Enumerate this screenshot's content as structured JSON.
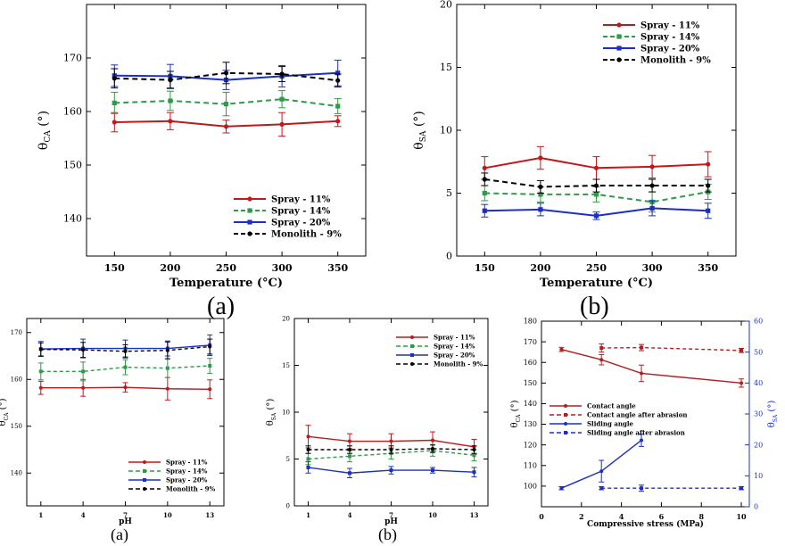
{
  "figure_captions": {
    "top_left": "(a)",
    "top_right": "(b)",
    "bottom_left": "(a)",
    "bottom_middle": "(b)"
  },
  "series_colors": {
    "spray_11": "#c0181b",
    "spray_14": "#2e9b48",
    "spray_20": "#1b2fc4",
    "monolith_9": "#000000",
    "abrasion_red": "#b02020",
    "abrasion_blue": "#1b2fc4"
  },
  "chart_data": [
    {
      "id": "top_left",
      "type": "line",
      "title": "",
      "xlabel": "Temperature (°C)",
      "ylabel": "θCA (°)",
      "ylabel_main": "θ",
      "ylabel_sub": "CA",
      "ylabel_tail": " (°)",
      "xlim": [
        125,
        375
      ],
      "ylim": [
        133,
        180
      ],
      "x": [
        150,
        200,
        250,
        300,
        350
      ],
      "xticks": [
        "150",
        "200",
        "250",
        "300",
        "350"
      ],
      "yticks": [
        140,
        150,
        160,
        170
      ],
      "ytick_labels": [
        "140",
        "150",
        "160",
        "170"
      ],
      "legend_position": "bottom-right",
      "series": [
        {
          "name": "Spray - 11%",
          "color_key": "spray_11",
          "dash": "solid",
          "marker": "circle",
          "values": [
            158.0,
            158.2,
            157.2,
            157.6,
            158.2
          ],
          "errors": [
            1.8,
            1.6,
            1.2,
            2.2,
            1.0
          ]
        },
        {
          "name": "Spray - 14%",
          "color_key": "spray_14",
          "dash": "dashed",
          "marker": "square",
          "values": [
            161.6,
            162.0,
            161.4,
            162.3,
            161.0
          ],
          "errors": [
            2.0,
            1.8,
            2.2,
            1.6,
            1.4
          ]
        },
        {
          "name": "Spray - 20%",
          "color_key": "spray_20",
          "dash": "solid",
          "marker": "square",
          "values": [
            166.7,
            166.6,
            165.9,
            166.6,
            167.2
          ],
          "errors": [
            2.0,
            2.2,
            1.8,
            2.0,
            2.4
          ]
        },
        {
          "name": "Monolith - 9%",
          "color_key": "monolith_9",
          "dash": "dashed",
          "marker": "circle",
          "values": [
            166.2,
            165.9,
            167.2,
            167.0,
            165.8
          ],
          "errors": [
            1.8,
            1.6,
            2.0,
            1.4,
            1.2
          ]
        }
      ]
    },
    {
      "id": "top_right",
      "type": "line",
      "title": "",
      "xlabel": "Temperature (°C)",
      "ylabel": "θSA (°)",
      "ylabel_main": "θ",
      "ylabel_sub": "SA",
      "ylabel_tail": " (°)",
      "xlim": [
        125,
        375
      ],
      "ylim": [
        0,
        20
      ],
      "x": [
        150,
        200,
        250,
        300,
        350
      ],
      "xticks": [
        "150",
        "200",
        "250",
        "300",
        "350"
      ],
      "yticks": [
        0,
        5,
        10,
        15,
        20
      ],
      "ytick_labels": [
        "0",
        "5",
        "10",
        "15",
        "20"
      ],
      "legend_position": "top-right",
      "series": [
        {
          "name": "Spray - 11%",
          "color_key": "spray_11",
          "dash": "solid",
          "marker": "circle",
          "values": [
            7.0,
            7.8,
            7.0,
            7.1,
            7.3
          ],
          "errors": [
            0.9,
            0.9,
            0.9,
            0.9,
            1.0
          ]
        },
        {
          "name": "Spray - 14%",
          "color_key": "spray_14",
          "dash": "dashed",
          "marker": "square",
          "values": [
            5.0,
            4.9,
            4.9,
            4.3,
            5.1
          ],
          "errors": [
            0.6,
            0.6,
            0.6,
            0.8,
            0.6
          ]
        },
        {
          "name": "Spray - 20%",
          "color_key": "spray_20",
          "dash": "solid",
          "marker": "square",
          "values": [
            3.6,
            3.7,
            3.2,
            3.8,
            3.6
          ],
          "errors": [
            0.5,
            0.5,
            0.3,
            0.6,
            0.6
          ]
        },
        {
          "name": "Monolith - 9%",
          "color_key": "monolith_9",
          "dash": "dashed",
          "marker": "circle",
          "values": [
            6.1,
            5.5,
            5.6,
            5.6,
            5.6
          ],
          "errors": [
            0.5,
            0.5,
            0.5,
            0.5,
            0.5
          ]
        }
      ]
    },
    {
      "id": "bottom_left",
      "type": "line",
      "title": "",
      "xlabel": "pH",
      "ylabel": "θCA (°)",
      "ylabel_main": "θ",
      "ylabel_sub": "CA",
      "ylabel_tail": " (°)",
      "xlim": [
        0,
        14
      ],
      "ylim": [
        133,
        173
      ],
      "x": [
        1,
        4,
        7,
        10,
        13
      ],
      "xticks": [
        "1",
        "4",
        "7",
        "10",
        "13"
      ],
      "yticks": [
        140,
        150,
        160,
        170
      ],
      "ytick_labels": [
        "140",
        "150",
        "160",
        "170"
      ],
      "legend_position": "bottom-right",
      "series": [
        {
          "name": "Spray - 11%",
          "color_key": "spray_11",
          "dash": "solid",
          "marker": "circle",
          "values": [
            158.2,
            158.2,
            158.3,
            158.0,
            157.9
          ],
          "errors": [
            1.4,
            1.8,
            1.0,
            2.4,
            2.0
          ]
        },
        {
          "name": "Spray - 14%",
          "color_key": "spray_14",
          "dash": "dashed",
          "marker": "square",
          "values": [
            161.7,
            161.7,
            162.6,
            162.4,
            162.9
          ],
          "errors": [
            1.8,
            2.0,
            1.6,
            2.0,
            1.6
          ]
        },
        {
          "name": "Spray - 20%",
          "color_key": "spray_20",
          "dash": "solid",
          "marker": "square",
          "values": [
            166.5,
            166.6,
            166.6,
            166.6,
            167.3
          ],
          "errors": [
            1.6,
            2.0,
            1.8,
            1.6,
            2.2
          ]
        },
        {
          "name": "Monolith - 9%",
          "color_key": "monolith_9",
          "dash": "dashed",
          "marker": "circle",
          "values": [
            166.4,
            166.3,
            166.0,
            166.2,
            167.0
          ],
          "errors": [
            1.4,
            1.6,
            1.4,
            1.8,
            1.6
          ]
        }
      ]
    },
    {
      "id": "bottom_middle",
      "type": "line",
      "title": "",
      "xlabel": "pH",
      "ylabel": "θSA (°)",
      "ylabel_main": "θ",
      "ylabel_sub": "SA",
      "ylabel_tail": " (°)",
      "xlim": [
        0,
        14
      ],
      "ylim": [
        0,
        20
      ],
      "x": [
        1,
        4,
        7,
        10,
        13
      ],
      "xticks": [
        "1",
        "4",
        "7",
        "10",
        "13"
      ],
      "yticks": [
        0,
        5,
        10,
        15,
        20
      ],
      "ytick_labels": [
        "0",
        "5",
        "10",
        "15",
        "20"
      ],
      "legend_position": "top-right",
      "series": [
        {
          "name": "Spray - 11%",
          "color_key": "spray_11",
          "dash": "solid",
          "marker": "circle",
          "values": [
            7.4,
            6.9,
            6.9,
            7.0,
            6.3
          ],
          "errors": [
            1.2,
            0.8,
            0.8,
            0.9,
            0.8
          ]
        },
        {
          "name": "Spray - 14%",
          "color_key": "spray_14",
          "dash": "dashed",
          "marker": "square",
          "values": [
            5.0,
            5.3,
            5.6,
            5.9,
            5.4
          ],
          "errors": [
            0.6,
            0.6,
            0.6,
            0.6,
            0.6
          ]
        },
        {
          "name": "Spray - 20%",
          "color_key": "spray_20",
          "dash": "solid",
          "marker": "square",
          "values": [
            4.1,
            3.5,
            3.8,
            3.8,
            3.6
          ],
          "errors": [
            0.6,
            0.5,
            0.4,
            0.3,
            0.5
          ]
        },
        {
          "name": "Monolith - 9%",
          "color_key": "monolith_9",
          "dash": "dashed",
          "marker": "circle",
          "values": [
            6.0,
            6.0,
            6.0,
            6.1,
            6.0
          ],
          "errors": [
            0.4,
            0.4,
            0.4,
            0.4,
            0.4
          ]
        }
      ]
    },
    {
      "id": "bottom_right",
      "type": "line",
      "title": "",
      "xlabel": "Compressive stress (MPa)",
      "ylabel": "θCA (°)",
      "ylabel_main": "θ",
      "ylabel_sub": "CA",
      "ylabel_tail": " (°)",
      "y2label": "θSA (°)",
      "y2label_main": "θ",
      "y2label_sub": "SA",
      "y2label_tail": " (°)",
      "xlim": [
        0,
        10.4
      ],
      "ylim": [
        90,
        180
      ],
      "y2lim": [
        0,
        60
      ],
      "xticks_values": [
        0,
        2,
        4,
        6,
        8,
        10
      ],
      "xticks": [
        "0",
        "2",
        "4",
        "6",
        "8",
        "10"
      ],
      "yticks": [
        100,
        110,
        120,
        130,
        140,
        150,
        160,
        170,
        180
      ],
      "ytick_labels": [
        "100",
        "110",
        "120",
        "130",
        "140",
        "150",
        "160",
        "170",
        "180"
      ],
      "y2ticks": [
        0,
        10,
        20,
        30,
        40,
        50,
        60
      ],
      "y2tick_labels": [
        "0",
        "10",
        "20",
        "30",
        "40",
        "50",
        "60"
      ],
      "legend_position": "middle-left",
      "series": [
        {
          "name": "Contact angle",
          "axis": "left",
          "color_key": "abrasion_red",
          "dash": "solid",
          "marker": "circle",
          "x": [
            1,
            3,
            5,
            10
          ],
          "values": [
            166.3,
            161.3,
            154.7,
            150.0
          ],
          "errors": [
            1.0,
            2.5,
            4.0,
            2.0
          ]
        },
        {
          "name": "Contact angle after abrasion",
          "axis": "left",
          "color_key": "abrasion_red",
          "dash": "dashed",
          "marker": "square",
          "x": [
            3,
            5,
            10
          ],
          "values": [
            167.0,
            167.2,
            165.8
          ],
          "errors": [
            2.0,
            1.5,
            1.0
          ]
        },
        {
          "name": "Sliding angle",
          "axis": "right",
          "color_key": "abrasion_blue",
          "dash": "solid",
          "marker": "circle",
          "x": [
            1,
            3,
            5
          ],
          "values": [
            6.0,
            11.5,
            21.5
          ],
          "errors": [
            0.5,
            3.5,
            2.0
          ]
        },
        {
          "name": "Sliding angle after abrasion",
          "axis": "right",
          "color_key": "abrasion_blue",
          "dash": "dashed",
          "marker": "square",
          "x": [
            3,
            5,
            10
          ],
          "values": [
            6.0,
            6.0,
            6.0
          ],
          "errors": [
            0.5,
            1.0,
            0.5
          ]
        }
      ]
    }
  ]
}
